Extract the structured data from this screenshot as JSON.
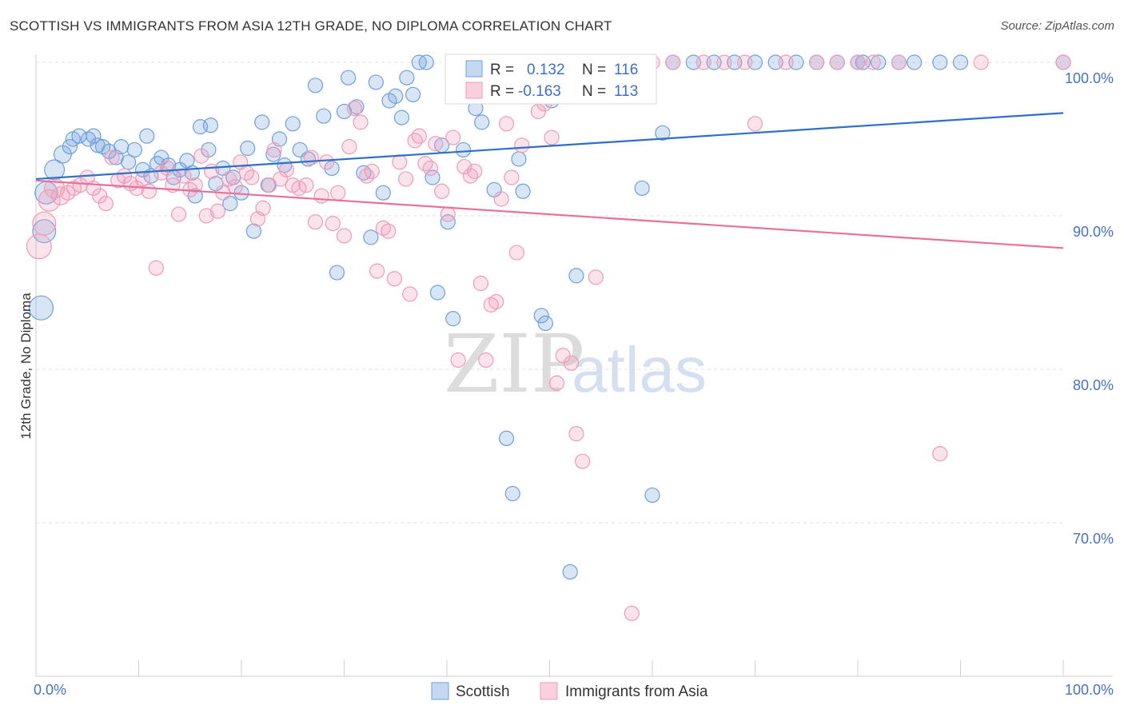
{
  "header": {
    "title": "SCOTTISH VS IMMIGRANTS FROM ASIA 12TH GRADE, NO DIPLOMA CORRELATION CHART",
    "source": "Source: ZipAtlas.com"
  },
  "stats": {
    "r_label": "R =",
    "n_label": "N =",
    "series1_r": "0.132",
    "series1_n": "116",
    "series2_r": "-0.163",
    "series2_n": "113"
  },
  "watermark": {
    "zip": "ZIP",
    "atlas": "atlas"
  },
  "chart_data": {
    "type": "scatter",
    "title": "SCOTTISH VS IMMIGRANTS FROM ASIA 12TH GRADE, NO DIPLOMA CORRELATION CHART",
    "ylabel": "12th Grade, No Diploma",
    "xlabel": "",
    "xlim": [
      0,
      100
    ],
    "ylim": [
      60,
      100
    ],
    "x_tick_labels": [
      "0.0%",
      "100.0%"
    ],
    "y_ticks": [
      70,
      80,
      90,
      100
    ],
    "y_tick_labels": [
      "70.0%",
      "80.0%",
      "90.0%",
      "100.0%"
    ],
    "grid": true,
    "legend_position": "bottom-center",
    "colors": {
      "scottish": "#6fa0dc",
      "asia": "#f09bb8",
      "scottish_line": "#2e6fc9",
      "asia_line": "#e8709a"
    },
    "series": [
      {
        "name": "Scottish",
        "r": 0.132,
        "n": 116,
        "trend": [
          [
            0,
            92.4
          ],
          [
            100,
            96.7
          ]
        ],
        "points": [
          [
            0.5,
            84.0
          ],
          [
            0.8,
            89.0
          ],
          [
            1.0,
            91.5
          ],
          [
            1.8,
            93.0
          ],
          [
            2.6,
            94.0
          ],
          [
            3.3,
            94.5
          ],
          [
            3.6,
            95.0
          ],
          [
            4.2,
            95.2
          ],
          [
            5.1,
            95.0
          ],
          [
            5.6,
            95.2
          ],
          [
            6.0,
            94.6
          ],
          [
            6.5,
            94.5
          ],
          [
            7.1,
            94.2
          ],
          [
            7.8,
            93.8
          ],
          [
            8.3,
            94.5
          ],
          [
            9.0,
            93.5
          ],
          [
            9.6,
            94.3
          ],
          [
            10.4,
            93.0
          ],
          [
            10.8,
            95.2
          ],
          [
            11.2,
            92.6
          ],
          [
            11.8,
            93.4
          ],
          [
            12.2,
            93.8
          ],
          [
            12.9,
            93.3
          ],
          [
            13.4,
            92.5
          ],
          [
            14.0,
            93.0
          ],
          [
            14.7,
            93.6
          ],
          [
            15.2,
            92.8
          ],
          [
            15.5,
            91.3
          ],
          [
            16.0,
            95.8
          ],
          [
            16.8,
            94.3
          ],
          [
            17.0,
            95.9
          ],
          [
            17.5,
            92.1
          ],
          [
            18.2,
            93.1
          ],
          [
            18.9,
            90.8
          ],
          [
            19.2,
            92.5
          ],
          [
            20.0,
            91.5
          ],
          [
            20.6,
            94.4
          ],
          [
            21.2,
            89.0
          ],
          [
            22.0,
            96.1
          ],
          [
            22.6,
            92.0
          ],
          [
            23.1,
            94.0
          ],
          [
            23.7,
            95.0
          ],
          [
            24.2,
            93.3
          ],
          [
            25.0,
            96.0
          ],
          [
            25.7,
            94.3
          ],
          [
            26.5,
            93.7
          ],
          [
            27.2,
            98.5
          ],
          [
            28.0,
            96.5
          ],
          [
            28.8,
            93.1
          ],
          [
            29.3,
            86.3
          ],
          [
            30.0,
            96.8
          ],
          [
            30.4,
            99.0
          ],
          [
            31.2,
            97.1
          ],
          [
            31.9,
            92.8
          ],
          [
            32.6,
            88.6
          ],
          [
            33.1,
            98.7
          ],
          [
            33.8,
            91.5
          ],
          [
            34.4,
            97.5
          ],
          [
            35.0,
            97.8
          ],
          [
            35.6,
            96.4
          ],
          [
            36.1,
            99.0
          ],
          [
            36.7,
            97.9
          ],
          [
            37.3,
            100.0
          ],
          [
            38.0,
            100.0
          ],
          [
            38.6,
            92.5
          ],
          [
            39.1,
            85.0
          ],
          [
            39.5,
            94.6
          ],
          [
            40.1,
            89.6
          ],
          [
            40.6,
            83.3
          ],
          [
            41.0,
            100.0
          ],
          [
            41.6,
            94.3
          ],
          [
            42.2,
            100.0
          ],
          [
            42.8,
            97.0
          ],
          [
            43.4,
            96.1
          ],
          [
            44.0,
            100.0
          ],
          [
            44.6,
            91.7
          ],
          [
            45.2,
            100.0
          ],
          [
            45.8,
            75.5
          ],
          [
            46.4,
            71.9
          ],
          [
            47.0,
            93.7
          ],
          [
            47.4,
            91.6
          ],
          [
            48.0,
            100.0
          ],
          [
            48.6,
            100.0
          ],
          [
            49.2,
            83.5
          ],
          [
            49.6,
            83.0
          ],
          [
            50.2,
            97.5
          ],
          [
            50.8,
            100.0
          ],
          [
            51.4,
            98.7
          ],
          [
            52.0,
            66.8
          ],
          [
            52.6,
            86.1
          ],
          [
            53.2,
            100.0
          ],
          [
            54.0,
            100.0
          ],
          [
            55.0,
            100.0
          ],
          [
            56.0,
            100.0
          ],
          [
            57.0,
            100.0
          ],
          [
            58.0,
            100.0
          ],
          [
            59.0,
            91.8
          ],
          [
            60.0,
            71.8
          ],
          [
            61.0,
            95.4
          ],
          [
            62.0,
            100.0
          ],
          [
            64.0,
            100.0
          ],
          [
            66.0,
            100.0
          ],
          [
            68.0,
            100.0
          ],
          [
            70.0,
            100.0
          ],
          [
            72.0,
            100.0
          ],
          [
            74.0,
            100.0
          ],
          [
            76.0,
            100.0
          ],
          [
            78.0,
            100.0
          ],
          [
            80.0,
            100.0
          ],
          [
            80.5,
            100.0
          ],
          [
            82.0,
            100.0
          ],
          [
            84.0,
            100.0
          ],
          [
            85.5,
            100.0
          ],
          [
            88.0,
            100.0
          ],
          [
            90.0,
            100.0
          ],
          [
            100.0,
            100.0
          ]
        ]
      },
      {
        "name": "Immigrants from Asia",
        "r": -0.163,
        "n": 113,
        "trend": [
          [
            0,
            92.3
          ],
          [
            100,
            87.9
          ]
        ],
        "points": [
          [
            0.3,
            88.0
          ],
          [
            0.8,
            89.5
          ],
          [
            1.3,
            91.0
          ],
          [
            1.8,
            91.8
          ],
          [
            2.4,
            91.3
          ],
          [
            3.1,
            91.5
          ],
          [
            3.7,
            91.8
          ],
          [
            4.3,
            92.0
          ],
          [
            5.0,
            92.5
          ],
          [
            5.6,
            91.8
          ],
          [
            6.2,
            91.3
          ],
          [
            6.8,
            90.8
          ],
          [
            7.4,
            93.8
          ],
          [
            8.0,
            92.3
          ],
          [
            8.6,
            92.6
          ],
          [
            9.2,
            92.1
          ],
          [
            9.8,
            91.8
          ],
          [
            10.4,
            92.4
          ],
          [
            11.0,
            91.6
          ],
          [
            11.7,
            86.6
          ],
          [
            12.2,
            92.8
          ],
          [
            12.8,
            93.1
          ],
          [
            13.3,
            92.0
          ],
          [
            13.9,
            90.1
          ],
          [
            14.4,
            92.6
          ],
          [
            15.0,
            91.7
          ],
          [
            15.5,
            92.0
          ],
          [
            16.1,
            93.9
          ],
          [
            16.6,
            90.0
          ],
          [
            17.1,
            92.9
          ],
          [
            17.7,
            90.3
          ],
          [
            18.2,
            91.5
          ],
          [
            18.8,
            92.4
          ],
          [
            19.4,
            91.9
          ],
          [
            19.9,
            93.5
          ],
          [
            20.5,
            92.8
          ],
          [
            21.0,
            92.5
          ],
          [
            21.6,
            89.8
          ],
          [
            22.1,
            90.5
          ],
          [
            22.7,
            92.0
          ],
          [
            23.2,
            94.3
          ],
          [
            23.8,
            92.4
          ],
          [
            24.4,
            93.0
          ],
          [
            25.0,
            92.0
          ],
          [
            25.6,
            91.8
          ],
          [
            26.3,
            92.0
          ],
          [
            26.8,
            93.8
          ],
          [
            27.2,
            89.6
          ],
          [
            27.8,
            91.3
          ],
          [
            28.3,
            93.5
          ],
          [
            28.9,
            89.5
          ],
          [
            29.4,
            91.5
          ],
          [
            30.0,
            88.7
          ],
          [
            30.5,
            94.5
          ],
          [
            31.0,
            97.0
          ],
          [
            31.6,
            96.1
          ],
          [
            32.2,
            92.6
          ],
          [
            32.7,
            92.9
          ],
          [
            33.2,
            86.4
          ],
          [
            33.8,
            89.2
          ],
          [
            34.3,
            89.0
          ],
          [
            34.9,
            85.9
          ],
          [
            35.4,
            93.5
          ],
          [
            36.0,
            92.4
          ],
          [
            36.4,
            84.9
          ],
          [
            36.9,
            94.9
          ],
          [
            37.3,
            95.2
          ],
          [
            37.9,
            93.4
          ],
          [
            38.4,
            93.1
          ],
          [
            38.9,
            94.7
          ],
          [
            39.5,
            91.6
          ],
          [
            40.1,
            90.1
          ],
          [
            40.6,
            95.1
          ],
          [
            41.1,
            80.6
          ],
          [
            41.7,
            93.2
          ],
          [
            42.3,
            92.6
          ],
          [
            42.7,
            92.9
          ],
          [
            43.3,
            85.6
          ],
          [
            43.8,
            80.6
          ],
          [
            44.3,
            84.2
          ],
          [
            44.8,
            84.4
          ],
          [
            45.3,
            91.1
          ],
          [
            45.8,
            96.0
          ],
          [
            46.3,
            92.5
          ],
          [
            46.8,
            87.6
          ],
          [
            47.3,
            94.6
          ],
          [
            48.0,
            100.0
          ],
          [
            48.9,
            96.8
          ],
          [
            49.5,
            97.3
          ],
          [
            50.2,
            95.1
          ],
          [
            50.7,
            79.1
          ],
          [
            51.3,
            80.9
          ],
          [
            52.1,
            80.4
          ],
          [
            52.6,
            75.8
          ],
          [
            53.2,
            74.0
          ],
          [
            54.5,
            86.0
          ],
          [
            56.0,
            100.0
          ],
          [
            58.0,
            64.1
          ],
          [
            60.0,
            100.0
          ],
          [
            62.0,
            100.0
          ],
          [
            65.0,
            100.0
          ],
          [
            67.0,
            100.0
          ],
          [
            69.0,
            100.0
          ],
          [
            70.0,
            96.0
          ],
          [
            73.0,
            100.0
          ],
          [
            76.0,
            100.0
          ],
          [
            78.0,
            100.0
          ],
          [
            80.0,
            100.0
          ],
          [
            81.5,
            100.0
          ],
          [
            84.0,
            100.0
          ],
          [
            88.0,
            74.5
          ],
          [
            92.0,
            100.0
          ],
          [
            100.0,
            100.0
          ]
        ]
      }
    ]
  }
}
